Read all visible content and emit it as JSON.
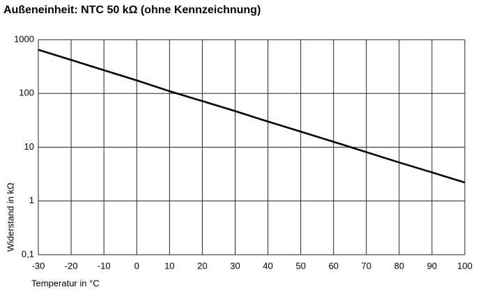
{
  "chart_data": {
    "type": "line",
    "title": "Außeneinheit: NTC 50 kΩ (ohne Kennzeichnung)",
    "xlabel": "Temperatur in °C",
    "ylabel": "Widerstand in kΩ",
    "x": [
      -30,
      -20,
      -10,
      0,
      10,
      20,
      30,
      40,
      50,
      60,
      70,
      80,
      90,
      100
    ],
    "values": [
      650,
      420,
      270,
      175,
      110,
      72,
      47,
      30,
      19.5,
      12.6,
      8.1,
      5.2,
      3.4,
      2.2
    ],
    "color": "#000000",
    "xlim": [
      -30,
      100
    ],
    "xticks": [
      -30,
      -20,
      -10,
      0,
      10,
      20,
      30,
      40,
      50,
      60,
      70,
      80,
      90,
      100
    ],
    "ylim": [
      0.1,
      1000
    ],
    "yticks": [
      {
        "value": 0.1,
        "label": "0,1"
      },
      1,
      10,
      100,
      1000
    ],
    "log_y": true,
    "grid": true
  }
}
